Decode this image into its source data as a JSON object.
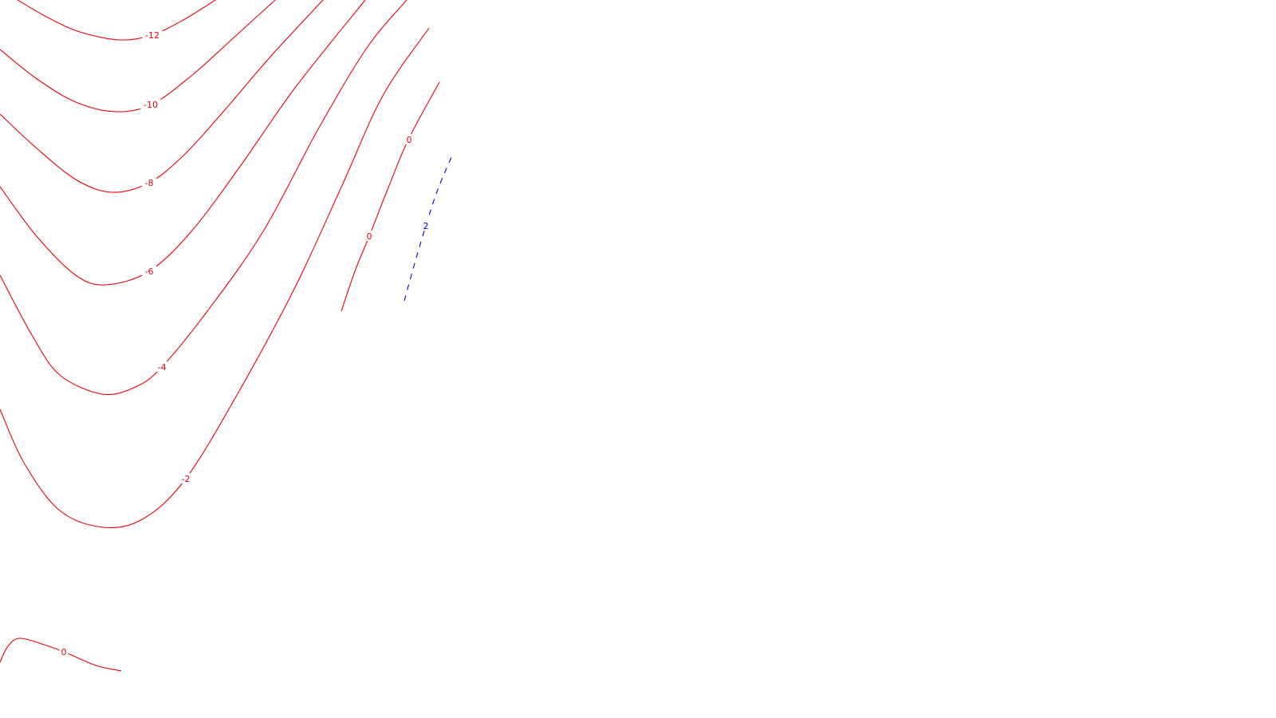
{
  "chart_data": {
    "type": "contour",
    "title": "",
    "xlabel": "",
    "ylabel": "",
    "axes_visible": false,
    "grid": false,
    "legend": "none",
    "colors": {
      "negative_and_zero": "#e8000b",
      "positive": "#0000dd",
      "background": "#ffffff"
    },
    "positive_line_style": "dashed",
    "contours": [
      {
        "level": -12,
        "label": "-12",
        "label_anchor": [
          191,
          44
        ],
        "points": [
          [
            22,
            0
          ],
          [
            60,
            22
          ],
          [
            100,
            40
          ],
          [
            150,
            50
          ],
          [
            190,
            44
          ],
          [
            230,
            25
          ],
          [
            270,
            0
          ]
        ]
      },
      {
        "level": -10,
        "label": "-10",
        "label_anchor": [
          189,
          131
        ],
        "points": [
          [
            0,
            62
          ],
          [
            45,
            98
          ],
          [
            95,
            128
          ],
          [
            145,
            140
          ],
          [
            190,
            131
          ],
          [
            240,
            95
          ],
          [
            290,
            50
          ],
          [
            345,
            0
          ]
        ]
      },
      {
        "level": -8,
        "label": "-8",
        "label_anchor": [
          187,
          229
        ],
        "points": [
          [
            0,
            143
          ],
          [
            45,
            185
          ],
          [
            95,
            225
          ],
          [
            140,
            241
          ],
          [
            187,
            229
          ],
          [
            230,
            195
          ],
          [
            280,
            140
          ],
          [
            340,
            70
          ],
          [
            405,
            0
          ]
        ]
      },
      {
        "level": -6,
        "label": "-6",
        "label_anchor": [
          187,
          340
        ],
        "points": [
          [
            0,
            234
          ],
          [
            45,
            295
          ],
          [
            95,
            345
          ],
          [
            133,
            357
          ],
          [
            187,
            340
          ],
          [
            240,
            290
          ],
          [
            300,
            210
          ],
          [
            370,
            110
          ],
          [
            458,
            0
          ]
        ]
      },
      {
        "level": -4,
        "label": "-4",
        "label_anchor": [
          203,
          460
        ],
        "points": [
          [
            0,
            345
          ],
          [
            40,
            420
          ],
          [
            75,
            470
          ],
          [
            128,
            494
          ],
          [
            170,
            485
          ],
          [
            203,
            460
          ],
          [
            260,
            390
          ],
          [
            330,
            290
          ],
          [
            400,
            160
          ],
          [
            460,
            60
          ],
          [
            510,
            0
          ]
        ]
      },
      {
        "level": -2,
        "label": "-2",
        "label_anchor": [
          233,
          600
        ],
        "points": [
          [
            0,
            513
          ],
          [
            30,
            580
          ],
          [
            75,
            640
          ],
          [
            130,
            661
          ],
          [
            180,
            650
          ],
          [
            233,
            600
          ],
          [
            300,
            490
          ],
          [
            370,
            360
          ],
          [
            430,
            230
          ],
          [
            480,
            120
          ],
          [
            538,
            35
          ]
        ]
      },
      {
        "level": 0,
        "label": "0",
        "label_anchor": [
          463,
          296
        ],
        "points": [
          [
            428,
            390
          ],
          [
            445,
            340
          ],
          [
            463,
            296
          ],
          [
            485,
            240
          ],
          [
            512,
            175
          ],
          [
            551,
            103
          ]
        ],
        "labels": [
          [
            "0",
            463,
            296
          ],
          [
            "0",
            513,
            175
          ]
        ]
      },
      {
        "level": 0,
        "label": "0",
        "label_anchor": [
          80,
          817
        ],
        "points": [
          [
            0,
            830
          ],
          [
            10,
            810
          ],
          [
            25,
            800
          ],
          [
            55,
            808
          ],
          [
            80,
            817
          ],
          [
            120,
            834
          ],
          [
            152,
            841
          ]
        ]
      },
      {
        "level": 2,
        "label": "2",
        "label_anchor": [
          534,
          283
        ],
        "points": [
          [
            507,
            377
          ],
          [
            520,
            330
          ],
          [
            534,
            283
          ],
          [
            548,
            240
          ],
          [
            566,
            197
          ]
        ]
      }
    ]
  }
}
